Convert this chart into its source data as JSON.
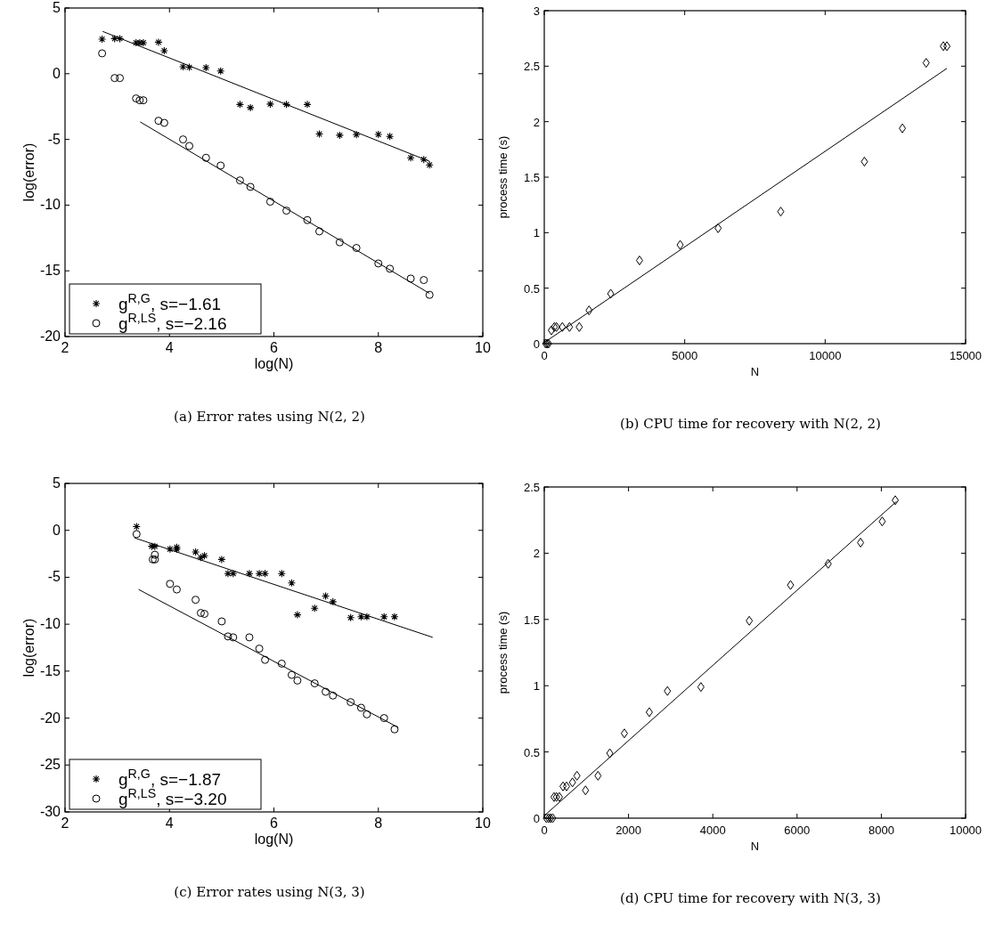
{
  "chart_data": [
    {
      "type": "scatter",
      "xlabel": "log(N)",
      "ylabel": "log(error)",
      "xlim": [
        2,
        10
      ],
      "ylim": [
        -20,
        5
      ],
      "xticks": [
        2,
        4,
        6,
        8,
        10
      ],
      "yticks": [
        -20,
        -15,
        -10,
        -5,
        0,
        5
      ],
      "grid": false,
      "legend": "bottom left",
      "annotations": [
        "(a) Error rates using N(2, 2)"
      ],
      "series": [
        {
          "name": "g$^{R,G}$, s=−1.61",
          "color": "#000000",
          "marker": "cross",
          "x": [
            2.71,
            2.95,
            3.05,
            3.36,
            3.43,
            3.5,
            3.79,
            3.9,
            4.26,
            4.38,
            4.7,
            4.98,
            5.35,
            5.55,
            5.93,
            6.24,
            6.64,
            6.87,
            7.26,
            7.58,
            8.0,
            8.22,
            8.62,
            8.87,
            8.98
          ],
          "values": [
            2.63,
            2.67,
            2.67,
            2.36,
            2.36,
            2.36,
            2.4,
            1.75,
            0.53,
            0.49,
            0.46,
            0.21,
            -2.34,
            -2.58,
            -2.31,
            -2.34,
            -2.34,
            -4.59,
            -4.68,
            -4.64,
            -4.62,
            -4.77,
            -6.4,
            -6.53,
            -6.94
          ]
        },
        {
          "name": "g$^{R,LS}$, s=−2.16",
          "color": "#000000",
          "marker": "circle",
          "x": [
            2.71,
            2.95,
            3.05,
            3.36,
            3.43,
            3.5,
            3.79,
            3.9,
            4.26,
            4.38,
            4.7,
            4.98,
            5.35,
            5.55,
            5.93,
            6.24,
            6.64,
            6.87,
            7.26,
            7.58,
            8.0,
            8.22,
            8.62,
            8.87,
            8.98
          ],
          "values": [
            1.55,
            -0.33,
            -0.33,
            -1.88,
            -2.02,
            -2.02,
            -3.58,
            -3.74,
            -5.0,
            -5.5,
            -6.4,
            -6.99,
            -8.12,
            -8.61,
            -9.74,
            -10.42,
            -11.14,
            -12.0,
            -12.83,
            -13.26,
            -14.44,
            -14.84,
            -15.59,
            -15.7,
            -16.83
          ]
        },
        {
          "type": "line",
          "color": "#000000",
          "x": [
            2.72,
            8.98
          ],
          "values": [
            3.22,
            -6.67
          ]
        },
        {
          "type": "line",
          "color": "#000000",
          "x": [
            3.44,
            8.98
          ],
          "values": [
            -3.67,
            -16.72
          ]
        }
      ]
    },
    {
      "type": "scatter",
      "xlabel": "N",
      "ylabel": "process time (s)",
      "xlim": [
        0,
        15000
      ],
      "ylim": [
        0,
        3
      ],
      "xticks": [
        0,
        5000,
        10000,
        15000
      ],
      "yticks": [
        0,
        0.5,
        1,
        1.5,
        2,
        2.5,
        3
      ],
      "grid": false,
      "legend": false,
      "annotations": [
        "(b) CPU time for recovery with N(2, 2)"
      ],
      "series": [
        {
          "color": "#000000",
          "marker": "diamond",
          "x": [
            50,
            100,
            150,
            254,
            359,
            433,
            644,
            898,
            1246,
            1595,
            2366,
            3391,
            4838,
            6190,
            8419,
            11398,
            12750,
            13595,
            14208,
            14335
          ],
          "values": [
            0,
            0,
            0,
            0.12,
            0.15,
            0.15,
            0.15,
            0.15,
            0.15,
            0.3,
            0.45,
            0.75,
            0.89,
            1.04,
            1.19,
            1.64,
            1.94,
            2.53,
            2.68,
            2.68
          ]
        },
        {
          "type": "line",
          "color": "#000000",
          "x": [
            0,
            14335
          ],
          "values": [
            0.01,
            2.48
          ]
        }
      ]
    },
    {
      "type": "scatter",
      "xlabel": "log(N)",
      "ylabel": "log(error)",
      "xlim": [
        2,
        10
      ],
      "ylim": [
        -30,
        5
      ],
      "xticks": [
        2,
        4,
        6,
        8,
        10
      ],
      "yticks": [
        -30,
        -25,
        -20,
        -15,
        -10,
        -5,
        0,
        5
      ],
      "grid": false,
      "legend": "bottom left",
      "annotations": [
        "(c) Error rates using N(3, 3)"
      ],
      "series": [
        {
          "name": "g$^{R,G}$, s=−1.87",
          "color": "#000000",
          "marker": "cross",
          "x": [
            3.37,
            3.66,
            3.72,
            4.01,
            4.14,
            4.14,
            4.5,
            4.6,
            4.67,
            5.0,
            5.12,
            5.22,
            5.53,
            5.72,
            5.83,
            6.15,
            6.34,
            6.45,
            6.78,
            6.99,
            7.13,
            7.47,
            7.67,
            7.78,
            8.11,
            8.31
          ],
          "values": [
            0.4,
            -1.7,
            -1.7,
            -2.0,
            -1.8,
            -2.0,
            -2.3,
            -2.9,
            -2.7,
            -3.1,
            -4.6,
            -4.6,
            -4.6,
            -4.6,
            -4.6,
            -4.6,
            -5.6,
            -9.0,
            -8.3,
            -7.0,
            -7.6,
            -9.3,
            -9.2,
            -9.2,
            -9.2,
            -9.2
          ]
        },
        {
          "name": "g$^{R,LS}$, s=−3.20",
          "color": "#000000",
          "marker": "circle",
          "x": [
            3.37,
            3.68,
            3.72,
            3.72,
            4.01,
            4.14,
            4.5,
            4.6,
            4.67,
            5.0,
            5.12,
            5.22,
            5.53,
            5.72,
            5.83,
            6.15,
            6.34,
            6.45,
            6.78,
            6.99,
            7.13,
            7.47,
            7.67,
            7.78,
            8.11,
            8.31
          ],
          "values": [
            -0.4,
            -3.1,
            -3.1,
            -2.6,
            -5.7,
            -6.3,
            -7.4,
            -8.8,
            -8.9,
            -9.7,
            -11.3,
            -11.4,
            -11.4,
            -12.6,
            -13.8,
            -14.2,
            -15.4,
            -16.0,
            -16.3,
            -17.2,
            -17.6,
            -18.3,
            -18.9,
            -19.6,
            -20.0,
            -21.2
          ]
        },
        {
          "type": "line",
          "color": "#000000",
          "x": [
            3.33,
            9.04
          ],
          "values": [
            -0.8,
            -11.4
          ]
        },
        {
          "type": "line",
          "color": "#000000",
          "x": [
            3.41,
            8.38
          ],
          "values": [
            -6.3,
            -21.0
          ]
        }
      ]
    },
    {
      "type": "scatter",
      "xlabel": "N",
      "ylabel": "process time (s)",
      "xlim": [
        0,
        10000
      ],
      "ylim": [
        0,
        2.5
      ],
      "xticks": [
        0,
        2000,
        4000,
        6000,
        8000,
        10000
      ],
      "yticks": [
        0,
        0.5,
        1,
        1.5,
        2,
        2.5
      ],
      "grid": false,
      "legend": false,
      "annotations": [
        "(d) CPU time for recovery with N(3, 3)"
      ],
      "series": [
        {
          "color": "#000000",
          "marker": "diamond",
          "x": [
            50,
            100,
            150,
            200,
            232,
            289,
            359,
            444,
            528,
            669,
            775,
            979,
            1275,
            1556,
            1901,
            2493,
            2923,
            3718,
            4866,
            5845,
            6739,
            7507,
            8021,
            8331
          ],
          "values": [
            0,
            0,
            0,
            0,
            0.16,
            0.16,
            0.16,
            0.24,
            0.24,
            0.27,
            0.32,
            0.21,
            0.32,
            0.49,
            0.64,
            0.8,
            0.96,
            0.99,
            1.49,
            1.76,
            1.92,
            2.08,
            2.24,
            2.4
          ]
        },
        {
          "type": "line",
          "color": "#000000",
          "x": [
            0,
            8359
          ],
          "values": [
            0.018,
            2.39
          ]
        }
      ]
    }
  ]
}
